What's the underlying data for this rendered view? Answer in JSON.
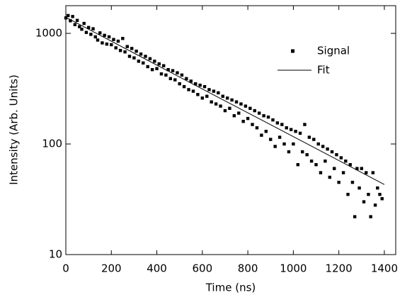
{
  "chart_data": {
    "type": "scatter",
    "xlabel": "Time (ns)",
    "ylabel": "Intensity (Arb. Units)",
    "xlim": [
      0,
      1450
    ],
    "xticks": [
      0,
      200,
      400,
      600,
      800,
      1000,
      1200,
      1400
    ],
    "ylim": [
      10,
      1780
    ],
    "yticks": [
      10,
      100,
      1000
    ],
    "ylog": true,
    "legend": "upper right",
    "series": [
      {
        "name": "Signal",
        "kind": "scatter",
        "color": "#000000",
        "x": [
          0,
          10,
          20,
          30,
          40,
          50,
          60,
          70,
          80,
          90,
          100,
          110,
          120,
          130,
          140,
          150,
          160,
          170,
          180,
          190,
          200,
          210,
          220,
          230,
          240,
          250,
          260,
          270,
          280,
          290,
          300,
          310,
          320,
          330,
          340,
          350,
          360,
          370,
          380,
          390,
          400,
          410,
          420,
          430,
          440,
          450,
          460,
          470,
          480,
          490,
          500,
          510,
          520,
          530,
          540,
          550,
          560,
          570,
          580,
          590,
          600,
          610,
          620,
          630,
          640,
          650,
          660,
          670,
          680,
          690,
          700,
          710,
          720,
          730,
          740,
          750,
          760,
          770,
          780,
          790,
          800,
          810,
          820,
          830,
          840,
          850,
          860,
          870,
          880,
          890,
          900,
          910,
          920,
          930,
          940,
          950,
          960,
          970,
          980,
          990,
          1000,
          1010,
          1020,
          1030,
          1040,
          1050,
          1060,
          1070,
          1080,
          1090,
          1100,
          1110,
          1120,
          1130,
          1140,
          1150,
          1160,
          1170,
          1180,
          1190,
          1200,
          1210,
          1220,
          1230,
          1240,
          1250,
          1260,
          1270,
          1280,
          1290,
          1300,
          1310,
          1320,
          1330,
          1340,
          1350,
          1360,
          1370,
          1380,
          1390
        ],
        "values": [
          1380,
          1450,
          1300,
          1420,
          1200,
          1310,
          1150,
          1090,
          1230,
          1020,
          1130,
          980,
          1100,
          930,
          870,
          1010,
          820,
          960,
          800,
          930,
          790,
          880,
          740,
          850,
          700,
          900,
          680,
          760,
          620,
          730,
          600,
          690,
          560,
          650,
          540,
          620,
          500,
          590,
          470,
          560,
          480,
          530,
          430,
          510,
          420,
          470,
          390,
          460,
          380,
          440,
          350,
          420,
          330,
          390,
          310,
          370,
          300,
          350,
          280,
          340,
          260,
          330,
          270,
          310,
          240,
          300,
          230,
          290,
          220,
          270,
          200,
          260,
          210,
          250,
          180,
          240,
          190,
          230,
          160,
          220,
          170,
          210,
          150,
          200,
          140,
          190,
          120,
          180,
          130,
          175,
          110,
          165,
          95,
          155,
          115,
          150,
          100,
          140,
          85,
          135,
          100,
          130,
          65,
          125,
          85,
          150,
          80,
          115,
          70,
          110,
          65,
          100,
          55,
          95,
          70,
          90,
          50,
          85,
          60,
          80,
          45,
          75,
          55,
          70,
          35,
          65,
          45,
          22,
          60,
          40,
          60,
          30,
          55,
          35,
          22,
          55,
          28,
          40,
          35,
          32
        ]
      },
      {
        "name": "Fit",
        "kind": "line",
        "color": "#000000",
        "x": [
          0,
          350,
          700,
          1050,
          1400
        ],
        "values": [
          1400,
          585,
          245,
          103,
          43
        ]
      }
    ]
  }
}
